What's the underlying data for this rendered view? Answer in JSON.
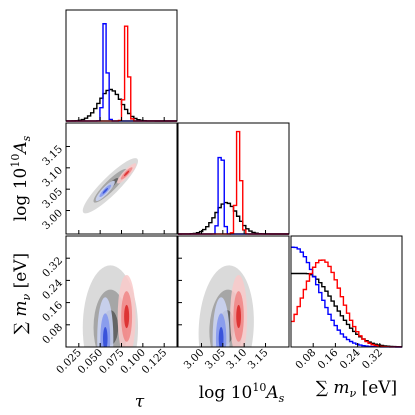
{
  "chart_data": {
    "type": "corner",
    "colors": {
      "blue": "#0000ff",
      "red": "#ff0000",
      "black": "#000000",
      "gray": "#808080"
    },
    "series": [
      {
        "key": "black",
        "color": "#000000"
      },
      {
        "key": "blue",
        "color": "#0000ff"
      },
      {
        "key": "red",
        "color": "#ff0000"
      }
    ],
    "params": [
      {
        "key": "tau",
        "label": "τ",
        "range": [
          0.01,
          0.14
        ],
        "ticks": [
          0.025,
          0.05,
          0.075,
          0.1,
          0.125
        ],
        "tick_labels": [
          "0.025",
          "0.050",
          "0.075",
          "0.100",
          "0.125"
        ]
      },
      {
        "key": "logA",
        "label": "log 10¹⁰A_s",
        "range": [
          2.945,
          3.205
        ],
        "ticks": [
          3.0,
          3.05,
          3.1,
          3.15
        ],
        "tick_labels": [
          "3.00",
          "3.05",
          "3.10",
          "3.15"
        ]
      },
      {
        "key": "mnu",
        "label": "∑ m_ν [eV]",
        "range": [
          0.0,
          0.4
        ],
        "ticks": [
          0.08,
          0.16,
          0.24,
          0.32
        ],
        "tick_labels": [
          "0.08",
          "0.16",
          "0.24",
          "0.32"
        ]
      }
    ],
    "marginals": {
      "tau": {
        "black": {
          "type": "gauss",
          "mu": 0.062,
          "sigma": 0.013,
          "height": 0.3
        },
        "blue": {
          "type": "gauss",
          "mu": 0.056,
          "sigma": 0.0022,
          "height": 1.0
        },
        "red": {
          "type": "gauss",
          "mu": 0.081,
          "sigma": 0.0024,
          "height": 0.93
        }
      },
      "logA": {
        "black": {
          "type": "gauss",
          "mu": 3.058,
          "sigma": 0.026,
          "height": 0.3
        },
        "blue": {
          "type": "gauss",
          "mu": 3.046,
          "sigma": 0.0048,
          "height": 0.95
        },
        "red": {
          "type": "gauss",
          "mu": 3.087,
          "sigma": 0.0052,
          "height": 1.0
        }
      },
      "mnu": {
        "black": {
          "type": "halfgauss",
          "mu": 0.055,
          "sigma": 0.098,
          "height": 0.7
        },
        "blue": {
          "type": "halfgauss",
          "mu": 0.012,
          "sigma": 0.085,
          "height": 0.95
        },
        "red": {
          "type": "gauss",
          "mu": 0.112,
          "sigma": 0.068,
          "height": 0.83
        }
      }
    },
    "contours": {
      "logA_vs_tau": {
        "black": {
          "mu": [
            0.062,
            3.058
          ],
          "sigma": [
            0.013,
            0.026
          ],
          "rho": 0.9
        },
        "blue": {
          "mu": [
            0.056,
            3.046
          ],
          "sigma": [
            0.0045,
            0.0095
          ],
          "rho": 0.88
        },
        "red": {
          "mu": [
            0.081,
            3.087
          ],
          "sigma": [
            0.0045,
            0.0095
          ],
          "rho": 0.88
        }
      },
      "mnu_vs_tau": {
        "black": {
          "mu": [
            0.062,
            0.07
          ],
          "sigma": [
            0.013,
            0.09
          ],
          "rho": 0.0
        },
        "blue": {
          "mu": [
            0.056,
            0.03
          ],
          "sigma": [
            0.0038,
            0.06
          ],
          "rho": 0.0
        },
        "red": {
          "mu": [
            0.081,
            0.11
          ],
          "sigma": [
            0.0042,
            0.06
          ],
          "rho": 0.0
        }
      },
      "mnu_vs_logA": {
        "black": {
          "mu": [
            3.058,
            0.07
          ],
          "sigma": [
            0.026,
            0.09
          ],
          "rho": 0.1
        },
        "blue": {
          "mu": [
            3.046,
            0.03
          ],
          "sigma": [
            0.008,
            0.06
          ],
          "rho": 0.0
        },
        "red": {
          "mu": [
            3.087,
            0.11
          ],
          "sigma": [
            0.008,
            0.06
          ],
          "rho": 0.0
        }
      }
    }
  }
}
